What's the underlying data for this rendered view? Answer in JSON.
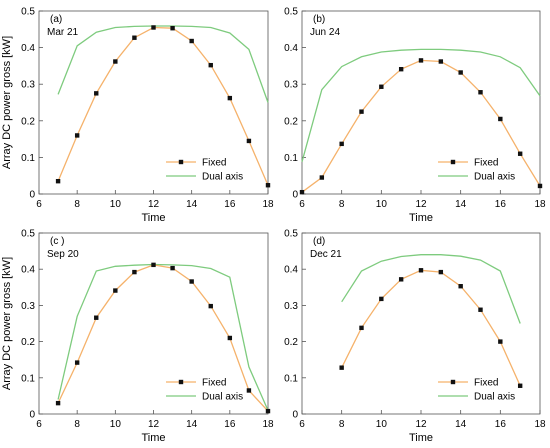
{
  "ylabel": "Array DC power gross [kW]",
  "xlabel": "Time",
  "chart_data": [
    {
      "type": "line",
      "tag": "(a)",
      "date": "Mar 21",
      "xlabel": "Time",
      "ylabel": "Array DC power gross [kW]",
      "xlim": [
        6,
        18
      ],
      "ylim": [
        0,
        0.5
      ],
      "xticks": [
        6,
        8,
        10,
        12,
        14,
        16,
        18
      ],
      "yticks": [
        0,
        0.1,
        0.2,
        0.3,
        0.4,
        0.5
      ],
      "legend": "bottom-right",
      "series": [
        {
          "name": "Fixed",
          "color": "#f5b26b",
          "marker": "square",
          "x": [
            7,
            8,
            9,
            10,
            11,
            12,
            13,
            14,
            15,
            16,
            17,
            18
          ],
          "y": [
            0.035,
            0.16,
            0.275,
            0.362,
            0.427,
            0.455,
            0.453,
            0.418,
            0.352,
            0.262,
            0.145,
            0.024
          ]
        },
        {
          "name": "Dual axis",
          "color": "#7ecb7e",
          "marker": "none",
          "x": [
            7,
            8,
            9,
            10,
            11,
            12,
            13,
            14,
            15,
            16,
            17,
            18
          ],
          "y": [
            0.272,
            0.405,
            0.442,
            0.455,
            0.458,
            0.459,
            0.459,
            0.458,
            0.455,
            0.44,
            0.395,
            0.25
          ]
        }
      ]
    },
    {
      "type": "line",
      "tag": "(b)",
      "date": "Jun 24",
      "xlabel": "Time",
      "ylabel": "",
      "xlim": [
        6,
        18
      ],
      "ylim": [
        0,
        0.5
      ],
      "xticks": [
        6,
        8,
        10,
        12,
        14,
        16,
        18
      ],
      "yticks": [
        0,
        0.1,
        0.2,
        0.3,
        0.4,
        0.5
      ],
      "legend": "bottom-right",
      "series": [
        {
          "name": "Fixed",
          "color": "#f5b26b",
          "marker": "square",
          "x": [
            6,
            7,
            8,
            9,
            10,
            11,
            12,
            13,
            14,
            15,
            16,
            17,
            18
          ],
          "y": [
            0.005,
            0.045,
            0.137,
            0.225,
            0.293,
            0.341,
            0.365,
            0.362,
            0.332,
            0.278,
            0.205,
            0.11,
            0.022
          ]
        },
        {
          "name": "Dual axis",
          "color": "#7ecb7e",
          "marker": "none",
          "x": [
            6,
            7,
            8,
            9,
            10,
            11,
            12,
            13,
            14,
            15,
            16,
            17,
            18
          ],
          "y": [
            0.088,
            0.285,
            0.348,
            0.375,
            0.388,
            0.393,
            0.395,
            0.395,
            0.393,
            0.388,
            0.375,
            0.345,
            0.268
          ]
        }
      ]
    },
    {
      "type": "line",
      "tag": "(c )",
      "date": "Sep 20",
      "xlabel": "Time",
      "ylabel": "Array DC power gross [kW]",
      "xlim": [
        6,
        18
      ],
      "ylim": [
        0,
        0.5
      ],
      "xticks": [
        6,
        8,
        10,
        12,
        14,
        16,
        18
      ],
      "yticks": [
        0,
        0.1,
        0.2,
        0.3,
        0.4,
        0.5
      ],
      "legend": "bottom-right",
      "series": [
        {
          "name": "Fixed",
          "color": "#f5b26b",
          "marker": "square",
          "x": [
            7,
            8,
            9,
            10,
            11,
            12,
            13,
            14,
            15,
            16,
            17,
            18
          ],
          "y": [
            0.03,
            0.142,
            0.266,
            0.341,
            0.392,
            0.412,
            0.403,
            0.366,
            0.298,
            0.21,
            0.065,
            0.008
          ]
        },
        {
          "name": "Dual axis",
          "color": "#7ecb7e",
          "marker": "none",
          "x": [
            7,
            8,
            9,
            10,
            11,
            12,
            13,
            14,
            15,
            16,
            17,
            18
          ],
          "y": [
            0.04,
            0.27,
            0.395,
            0.408,
            0.411,
            0.413,
            0.412,
            0.41,
            0.402,
            0.378,
            0.13,
            0.01
          ]
        }
      ]
    },
    {
      "type": "line",
      "tag": "(d)",
      "date": "Dec 21",
      "xlabel": "Time",
      "ylabel": "",
      "xlim": [
        6,
        18
      ],
      "ylim": [
        0,
        0.5
      ],
      "xticks": [
        6,
        8,
        10,
        12,
        14,
        16,
        18
      ],
      "yticks": [
        0,
        0.1,
        0.2,
        0.3,
        0.4,
        0.5
      ],
      "legend": "bottom-right",
      "series": [
        {
          "name": "Fixed",
          "color": "#f5b26b",
          "marker": "square",
          "x": [
            8,
            9,
            10,
            11,
            12,
            13,
            14,
            15,
            16,
            17
          ],
          "y": [
            0.128,
            0.238,
            0.318,
            0.372,
            0.397,
            0.392,
            0.353,
            0.288,
            0.2,
            0.078
          ]
        },
        {
          "name": "Dual axis",
          "color": "#7ecb7e",
          "marker": "none",
          "x": [
            8,
            9,
            10,
            11,
            12,
            13,
            14,
            15,
            16,
            17
          ],
          "y": [
            0.31,
            0.395,
            0.422,
            0.435,
            0.44,
            0.44,
            0.436,
            0.425,
            0.395,
            0.25
          ]
        }
      ]
    }
  ]
}
